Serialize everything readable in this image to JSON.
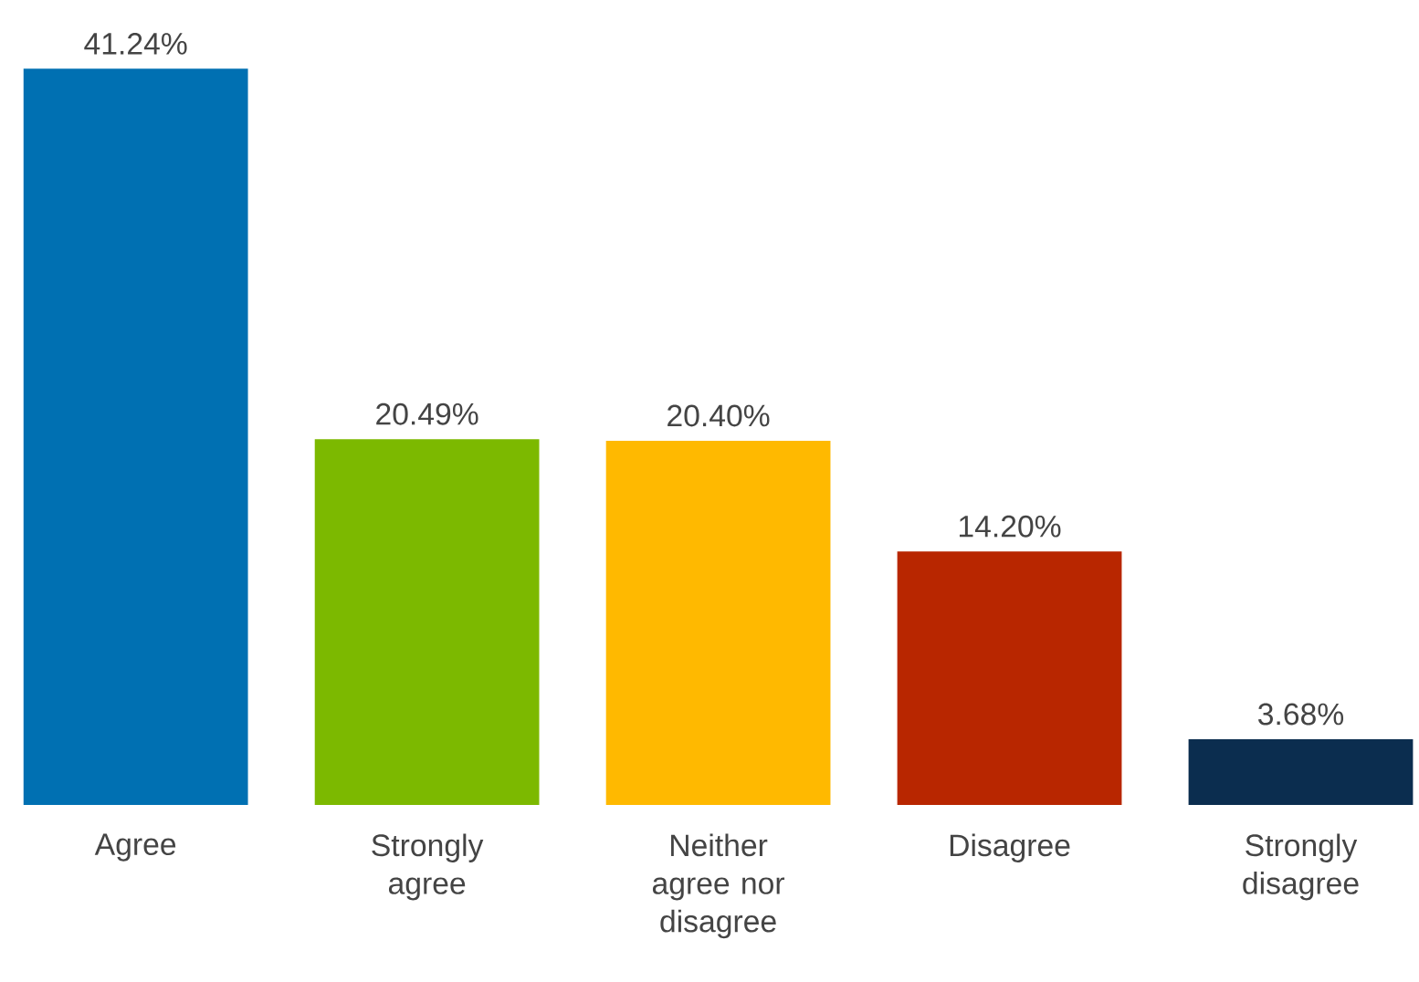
{
  "chart_data": {
    "type": "bar",
    "categories": [
      "Agree",
      "Strongly agree",
      "Neither agree nor disagree",
      "Disagree",
      "Strongly disagree"
    ],
    "values": [
      41.24,
      20.49,
      20.4,
      14.2,
      3.68
    ],
    "value_labels": [
      "41.24%",
      "20.49%",
      "20.40%",
      "14.20%",
      "3.68%"
    ],
    "colors": [
      "#0070b2",
      "#7cb900",
      "#ffb900",
      "#b82600",
      "#0b2d4f"
    ]
  }
}
